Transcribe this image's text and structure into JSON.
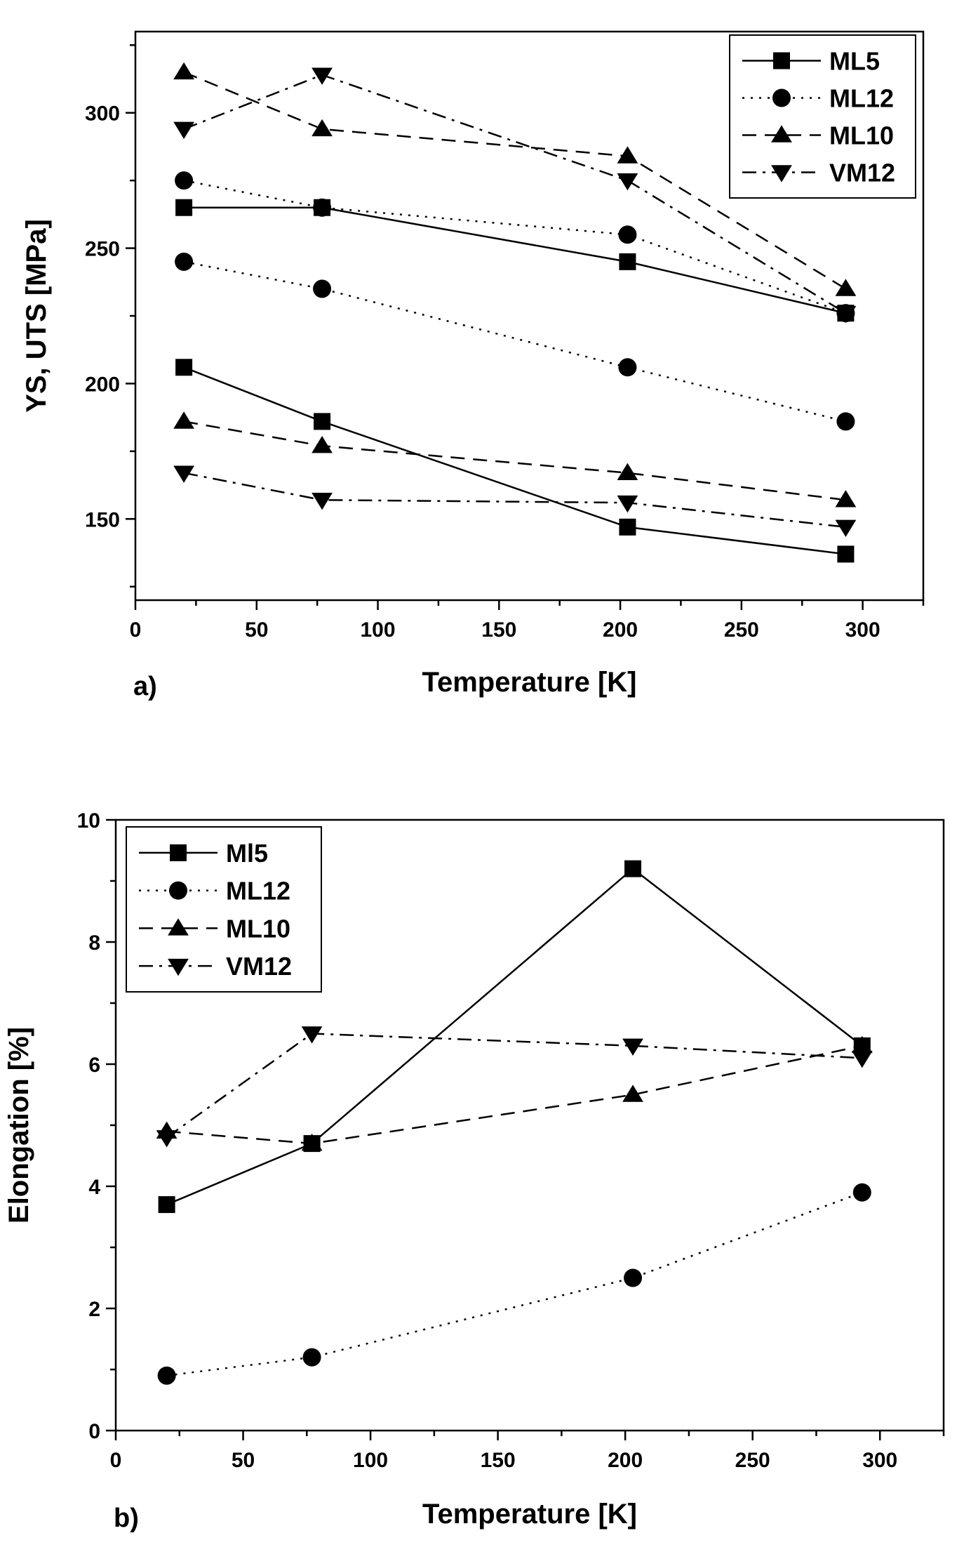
{
  "chart_data": [
    {
      "type": "line",
      "panel_label": "a)",
      "title": "",
      "xlabel": "Temperature [K]",
      "ylabel": "YS, UTS [MPa]",
      "xlim": [
        0,
        325
      ],
      "ylim": [
        120,
        330
      ],
      "xticks": [
        0,
        50,
        100,
        150,
        200,
        250,
        300
      ],
      "yticks": [
        150,
        200,
        250,
        300
      ],
      "legend_position": "top-right",
      "legend": [
        "ML5",
        "ML12",
        "ML10",
        "VM12"
      ],
      "series": [
        {
          "name": "ML5",
          "role": "UTS",
          "marker": "square",
          "dash": "solid",
          "x": [
            20,
            77,
            203,
            293
          ],
          "y": [
            265,
            265,
            245,
            226
          ]
        },
        {
          "name": "ML5",
          "role": "YS",
          "marker": "square",
          "dash": "solid",
          "x": [
            20,
            77,
            203,
            293
          ],
          "y": [
            206,
            186,
            147,
            137
          ]
        },
        {
          "name": "ML12",
          "role": "UTS",
          "marker": "circle",
          "dash": "dotted",
          "x": [
            20,
            77,
            203,
            293
          ],
          "y": [
            275,
            265,
            255,
            226
          ]
        },
        {
          "name": "ML12",
          "role": "YS",
          "marker": "circle",
          "dash": "dotted",
          "x": [
            20,
            77,
            203,
            293
          ],
          "y": [
            245,
            235,
            206,
            186
          ]
        },
        {
          "name": "ML10",
          "role": "UTS",
          "marker": "triangle-up",
          "dash": "dashed",
          "x": [
            20,
            77,
            203,
            293
          ],
          "y": [
            315,
            294,
            284,
            235
          ]
        },
        {
          "name": "ML10",
          "role": "YS",
          "marker": "triangle-up",
          "dash": "dashed",
          "x": [
            20,
            77,
            203,
            293
          ],
          "y": [
            186,
            177,
            167,
            157
          ]
        },
        {
          "name": "VM12",
          "role": "UTS",
          "marker": "triangle-down",
          "dash": "dashdot",
          "x": [
            20,
            77,
            203,
            293
          ],
          "y": [
            294,
            314,
            275,
            226
          ]
        },
        {
          "name": "VM12",
          "role": "YS",
          "marker": "triangle-down",
          "dash": "dashdot",
          "x": [
            20,
            77,
            203,
            293
          ],
          "y": [
            167,
            157,
            156,
            147
          ]
        }
      ]
    },
    {
      "type": "line",
      "panel_label": "b)",
      "title": "",
      "xlabel": "Temperature [K]",
      "ylabel": "Elongation [%]",
      "xlim": [
        0,
        325
      ],
      "ylim": [
        0,
        10
      ],
      "xticks": [
        0,
        50,
        100,
        150,
        200,
        250,
        300
      ],
      "yticks": [
        0,
        2,
        4,
        6,
        8,
        10
      ],
      "legend_position": "top-left",
      "legend": [
        "Ml5",
        "ML12",
        "ML10",
        "VM12"
      ],
      "series": [
        {
          "name": "Ml5",
          "marker": "square",
          "dash": "solid",
          "x": [
            20,
            77,
            203,
            293
          ],
          "y": [
            3.7,
            4.7,
            9.2,
            6.3
          ]
        },
        {
          "name": "ML12",
          "marker": "circle",
          "dash": "dotted",
          "x": [
            20,
            77,
            203,
            293
          ],
          "y": [
            0.9,
            1.2,
            2.5,
            3.9
          ]
        },
        {
          "name": "ML10",
          "marker": "triangle-up",
          "dash": "dashed",
          "x": [
            20,
            77,
            203,
            293
          ],
          "y": [
            4.9,
            4.7,
            5.5,
            6.3
          ]
        },
        {
          "name": "VM12",
          "marker": "triangle-down",
          "dash": "dashdot",
          "x": [
            20,
            77,
            203,
            293
          ],
          "y": [
            4.8,
            6.5,
            6.3,
            6.1
          ]
        }
      ]
    }
  ]
}
